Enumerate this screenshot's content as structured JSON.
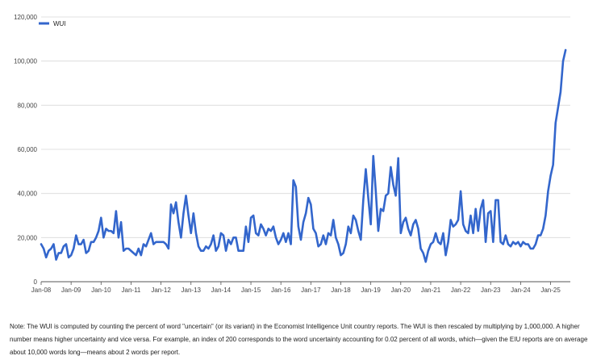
{
  "chart_data": {
    "type": "line",
    "title": "",
    "xlabel": "",
    "ylabel": "",
    "ylim": [
      0,
      120000
    ],
    "yticks": [
      0,
      20000,
      40000,
      60000,
      80000,
      100000,
      120000
    ],
    "ytick_labels": [
      "0",
      "20,000",
      "40,000",
      "60,000",
      "80,000",
      "100,000",
      "120,000"
    ],
    "xtick_labels": [
      "Jan-08",
      "Jan-09",
      "Jan-10",
      "Jan-11",
      "Jan-12",
      "Jan-13",
      "Jan-14",
      "Jan-15",
      "Jan-16",
      "Jan-17",
      "Jan-18",
      "Jan-19",
      "Jan-20",
      "Jan-21",
      "Jan-22",
      "Jan-23",
      "Jan-24",
      "Jan-25"
    ],
    "legend": "top-left",
    "series": [
      {
        "name": "WUI",
        "color": "#3366cc",
        "start": "Jan-08",
        "frequency": "monthly",
        "values": [
          17000,
          15000,
          11000,
          14000,
          15000,
          17000,
          10000,
          13000,
          13000,
          16000,
          17000,
          11000,
          12000,
          15000,
          21000,
          17000,
          17000,
          19000,
          13000,
          14000,
          18000,
          18000,
          20000,
          23000,
          29000,
          20000,
          24000,
          23000,
          23000,
          22000,
          32000,
          20000,
          27000,
          14000,
          15000,
          15000,
          14000,
          13000,
          12000,
          15000,
          12000,
          17000,
          16000,
          19000,
          22000,
          17000,
          18000,
          18000,
          18000,
          18000,
          17000,
          15000,
          35000,
          31000,
          36000,
          27000,
          20000,
          31000,
          39000,
          30000,
          22000,
          31000,
          22000,
          16000,
          14000,
          14000,
          16000,
          15000,
          17000,
          21000,
          14000,
          16000,
          22000,
          21000,
          14000,
          19000,
          17000,
          20000,
          20000,
          14000,
          14000,
          14000,
          25000,
          18000,
          29000,
          30000,
          22000,
          21000,
          26000,
          24000,
          21000,
          24000,
          23000,
          25000,
          20000,
          17000,
          19000,
          22000,
          18000,
          22000,
          17000,
          46000,
          43000,
          25000,
          19000,
          27000,
          31000,
          38000,
          35000,
          24000,
          22000,
          16000,
          17000,
          21000,
          17000,
          22000,
          21000,
          28000,
          20000,
          17000,
          12000,
          13000,
          17000,
          25000,
          22000,
          30000,
          28000,
          23000,
          19000,
          37000,
          51000,
          38000,
          26000,
          57000,
          41000,
          23000,
          33000,
          32000,
          39000,
          40000,
          52000,
          44000,
          39000,
          56000,
          22000,
          27000,
          29000,
          24000,
          21000,
          26000,
          28000,
          24000,
          15000,
          13000,
          9000,
          14000,
          17000,
          18000,
          22000,
          18000,
          17000,
          22000,
          12000,
          18000,
          28000,
          25000,
          26000,
          28000,
          41000,
          26000,
          23000,
          22000,
          30000,
          22000,
          33000,
          23000,
          33000,
          37000,
          18000,
          31000,
          32000,
          18000,
          37000,
          37000,
          18000,
          17000,
          21000,
          17000,
          16000,
          18000,
          17000,
          18000,
          16000,
          18000,
          17000,
          17000,
          15000,
          15000,
          17000,
          21000,
          21000,
          24000,
          30000,
          41000,
          48000,
          53000,
          72000,
          79000,
          86000,
          100000,
          105000
        ]
      }
    ]
  },
  "note": {
    "text": "Note: The WUI is computed by counting the percent of word \"uncertain\" (or its variant) in the Economist Intelligence Unit country reports. The WUI is then rescaled by multiplying by 1,000,000. A higher number means higher uncertainty and vice versa. For example, an index of 200 corresponds to the word uncertainty accounting for 0.02 percent of all words, which—given the EIU reports are on average about 10,000 words long—means about 2 words per report."
  }
}
